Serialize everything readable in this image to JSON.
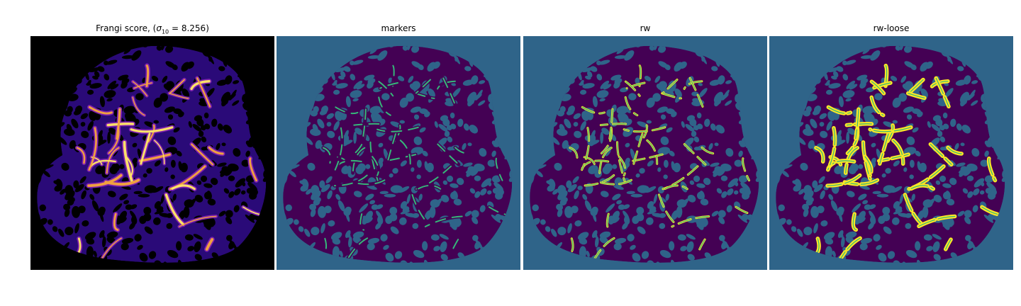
{
  "figure": {
    "panels": [
      {
        "id": "frangi",
        "title_prefix": "Frangi score, (",
        "title_symbol": "σ",
        "title_subscript": "10",
        "title_suffix": " = 8.256)"
      },
      {
        "id": "markers",
        "title": "markers"
      },
      {
        "id": "rw",
        "title": "rw"
      },
      {
        "id": "rw-loose",
        "title": "rw-loose"
      }
    ]
  },
  "colors": {
    "frangi_background": "#000000",
    "frangi_low": "#2a0a78",
    "frangi_mid": "#7c1fb0",
    "frangi_high": "#f0a040",
    "frangi_peak": "#fbe06a",
    "seg_background": "#2f6489",
    "seg_tissue": "#440154",
    "seg_vessel": "#fde725",
    "seg_marker": "#35b779"
  }
}
